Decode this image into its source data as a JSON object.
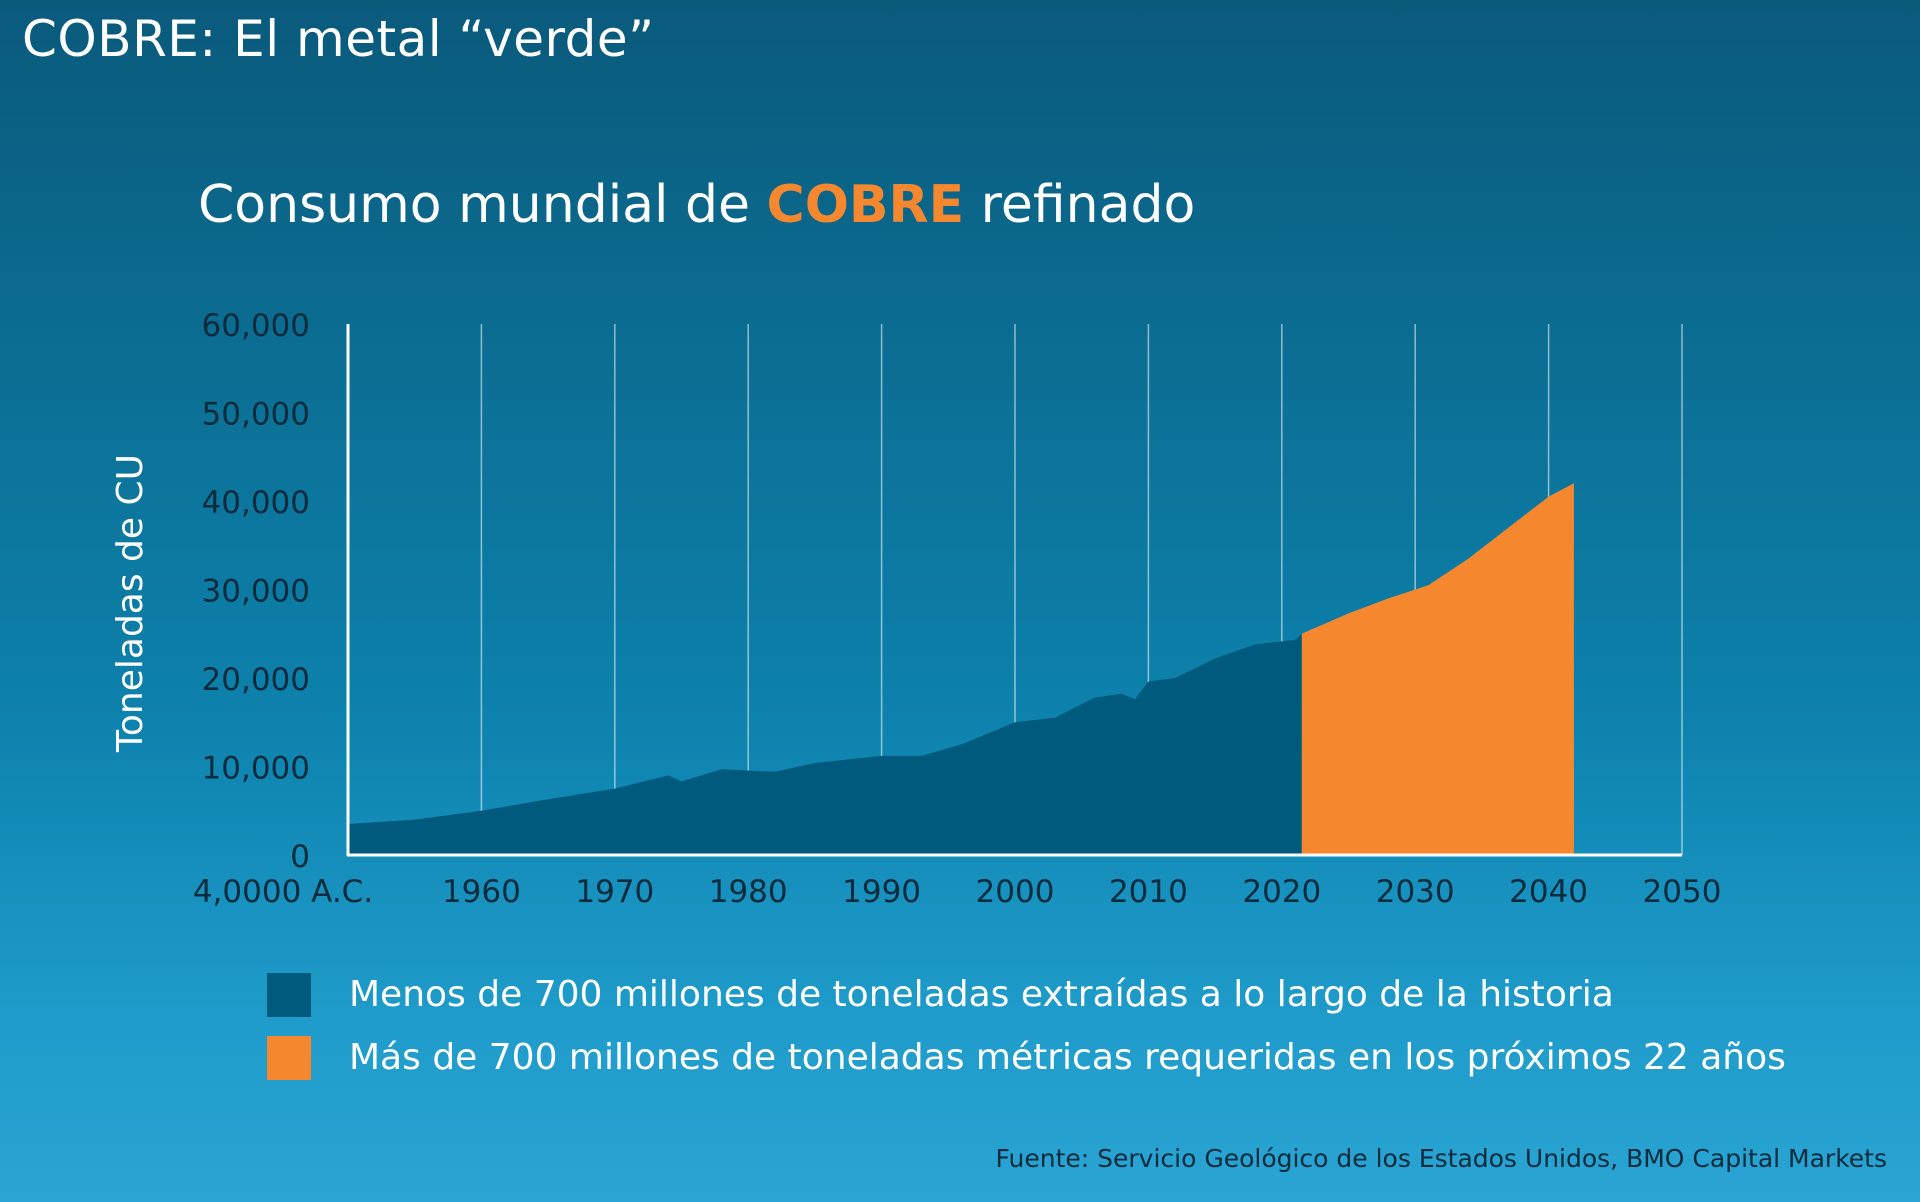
{
  "header": {
    "title": "COBRE: El metal “verde”"
  },
  "chart_title": {
    "prefix": "Consumo mundial de ",
    "highlight": "COBRE",
    "suffix": " refinado"
  },
  "colors": {
    "historical": "#005a7d",
    "projected": "#f5882f",
    "highlight_text": "#f5882f"
  },
  "chart_data": {
    "type": "area",
    "title": "Consumo mundial de COBRE refinado",
    "ylabel": "Toneladas de CU",
    "xlabel": "",
    "x_tick_labels": [
      "4,0000 A.C.",
      "1960",
      "1970",
      "1980",
      "1990",
      "2000",
      "2010",
      "2020",
      "2030",
      "2040",
      "2050"
    ],
    "x_tick_values": [
      1950,
      1960,
      1970,
      1980,
      1990,
      2000,
      2010,
      2020,
      2030,
      2040,
      2050
    ],
    "y_tick_labels": [
      "0",
      "10,000",
      "20,000",
      "30,000",
      "40,000",
      "50,000",
      "60,000"
    ],
    "y_tick_values": [
      0,
      10000,
      20000,
      30000,
      40000,
      50000,
      60000
    ],
    "xlim": [
      1950,
      2050
    ],
    "ylim": [
      0,
      60000
    ],
    "grid": "vertical",
    "legend_position": "bottom",
    "series": [
      {
        "name": "Menos de 700 millones de toneladas extraídas a lo largo de la historia",
        "color": "#005a7d",
        "points": [
          [
            1950,
            3500
          ],
          [
            1955,
            4000
          ],
          [
            1960,
            5000
          ],
          [
            1965,
            6300
          ],
          [
            1970,
            7500
          ],
          [
            1974,
            9000
          ],
          [
            1975,
            8300
          ],
          [
            1978,
            9700
          ],
          [
            1982,
            9400
          ],
          [
            1985,
            10400
          ],
          [
            1990,
            11200
          ],
          [
            1993,
            11200
          ],
          [
            1996,
            12500
          ],
          [
            2000,
            15000
          ],
          [
            2003,
            15500
          ],
          [
            2006,
            17800
          ],
          [
            2008,
            18200
          ],
          [
            2009,
            17600
          ],
          [
            2010,
            19600
          ],
          [
            2012,
            20000
          ],
          [
            2015,
            22200
          ],
          [
            2018,
            23800
          ],
          [
            2021,
            24300
          ],
          [
            2021.5,
            25000
          ]
        ]
      },
      {
        "name": "Más de 700 millones de toneladas métricas requeridas en los próximos 22 años",
        "color": "#f5882f",
        "points": [
          [
            2021.5,
            25000
          ],
          [
            2025,
            27300
          ],
          [
            2028,
            29000
          ],
          [
            2031,
            30500
          ],
          [
            2034,
            33500
          ],
          [
            2037,
            37000
          ],
          [
            2040,
            40500
          ],
          [
            2041.9,
            42000
          ]
        ]
      }
    ]
  },
  "legend": {
    "items": [
      {
        "label": "Menos de 700 millones de toneladas extraídas a lo largo de la historia",
        "color": "#005a7d"
      },
      {
        "label": "Más de 700 millones de toneladas métricas requeridas en los próximos 22 años",
        "color": "#f5882f"
      }
    ]
  },
  "source": "Fuente: Servicio Geológico de los Estados Unidos, BMO Capital Markets"
}
